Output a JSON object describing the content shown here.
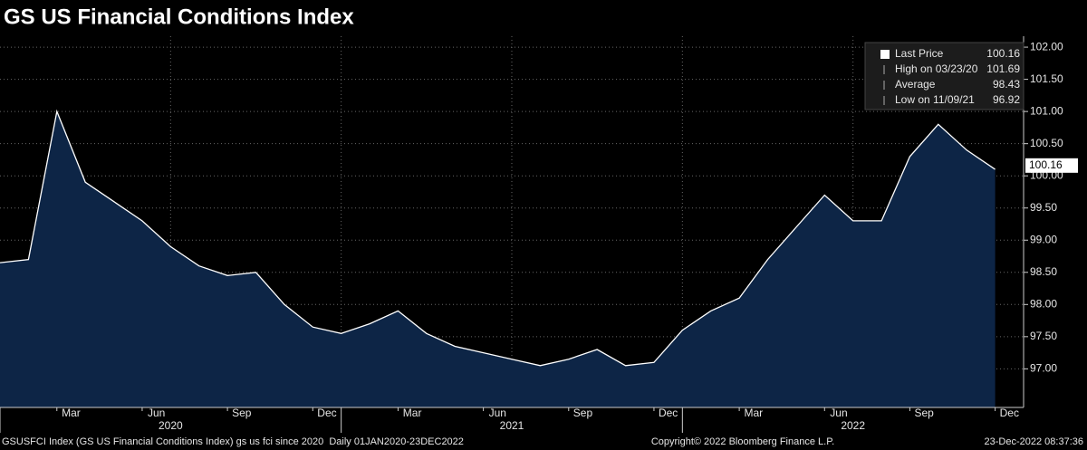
{
  "chart_data": {
    "type": "area",
    "title": "GS US Financial Conditions Index",
    "x": [
      "2020-01",
      "2020-02",
      "2020-03",
      "2020-04",
      "2020-05",
      "2020-06",
      "2020-07",
      "2020-08",
      "2020-09",
      "2020-10",
      "2020-11",
      "2020-12",
      "2021-01",
      "2021-02",
      "2021-03",
      "2021-04",
      "2021-05",
      "2021-06",
      "2021-07",
      "2021-08",
      "2021-09",
      "2021-10",
      "2021-11",
      "2021-12",
      "2022-01",
      "2022-02",
      "2022-03",
      "2022-04",
      "2022-05",
      "2022-06",
      "2022-07",
      "2022-08",
      "2022-09",
      "2022-10",
      "2022-11",
      "2022-12"
    ],
    "series": [
      {
        "name": "Last Price",
        "color": "#ffffff",
        "values": [
          98.65,
          98.7,
          101.0,
          99.9,
          99.6,
          99.3,
          98.9,
          98.6,
          98.45,
          98.5,
          98.0,
          97.65,
          97.55,
          97.7,
          97.9,
          97.55,
          97.35,
          97.25,
          97.15,
          97.05,
          97.15,
          97.3,
          97.05,
          97.1,
          97.6,
          97.9,
          98.1,
          98.7,
          99.2,
          99.7,
          99.3,
          99.3,
          100.3,
          100.8,
          100.4,
          100.1
        ]
      }
    ],
    "xlim": [
      "2020-01",
      "2023-01"
    ],
    "xticks": [
      {
        "value": "2020-03",
        "label": "Mar"
      },
      {
        "value": "2020-06",
        "label": "Jun"
      },
      {
        "value": "2020-09",
        "label": "Sep"
      },
      {
        "value": "2020-12",
        "label": "Dec"
      },
      {
        "value": "2021-03",
        "label": "Mar"
      },
      {
        "value": "2021-06",
        "label": "Jun"
      },
      {
        "value": "2021-09",
        "label": "Sep"
      },
      {
        "value": "2021-12",
        "label": "Dec"
      },
      {
        "value": "2022-03",
        "label": "Mar"
      },
      {
        "value": "2022-06",
        "label": "Jun"
      },
      {
        "value": "2022-09",
        "label": "Sep"
      },
      {
        "value": "2022-12",
        "label": "Dec"
      }
    ],
    "year_labels": [
      {
        "value": "2020-01",
        "label": "2020"
      },
      {
        "value": "2021-01",
        "label": "2021"
      },
      {
        "value": "2022-01",
        "label": "2022"
      }
    ],
    "xgrid": [
      "2020-07",
      "2021-01",
      "2021-07",
      "2022-01",
      "2022-07"
    ],
    "ylim": [
      96.4,
      102.17
    ],
    "yticks": [
      {
        "value": 97,
        "label": "97.00"
      },
      {
        "value": 97.5,
        "label": "97.50"
      },
      {
        "value": 98,
        "label": "98.00"
      },
      {
        "value": 98.5,
        "label": "98.50"
      },
      {
        "value": 99,
        "label": "99.00"
      },
      {
        "value": 99.5,
        "label": "99.50"
      },
      {
        "value": 100,
        "label": "100.00"
      },
      {
        "value": 100.5,
        "label": "100.50"
      },
      {
        "value": 101,
        "label": "101.00"
      },
      {
        "value": 101.5,
        "label": "101.50"
      },
      {
        "value": 102,
        "label": "102.00"
      }
    ],
    "grid": true,
    "fill_color": "#0d2546",
    "legend": [
      {
        "label": "Last Price",
        "value": 100.16
      },
      {
        "label": "High on 03/23/20",
        "value": 101.69
      },
      {
        "label": "Average",
        "value": 98.43
      },
      {
        "label": "Low on 11/09/21",
        "value": 96.92
      }
    ],
    "footer_left": "GSUSFCI Index (GS US Financial Conditions Index) gs us fci since 2020  Daily 01JAN2020-23DEC2022",
    "footer_center": "Copyright© 2022 Bloomberg Finance L.P.",
    "footer_right": "23-Dec-2022 08:37:36"
  }
}
